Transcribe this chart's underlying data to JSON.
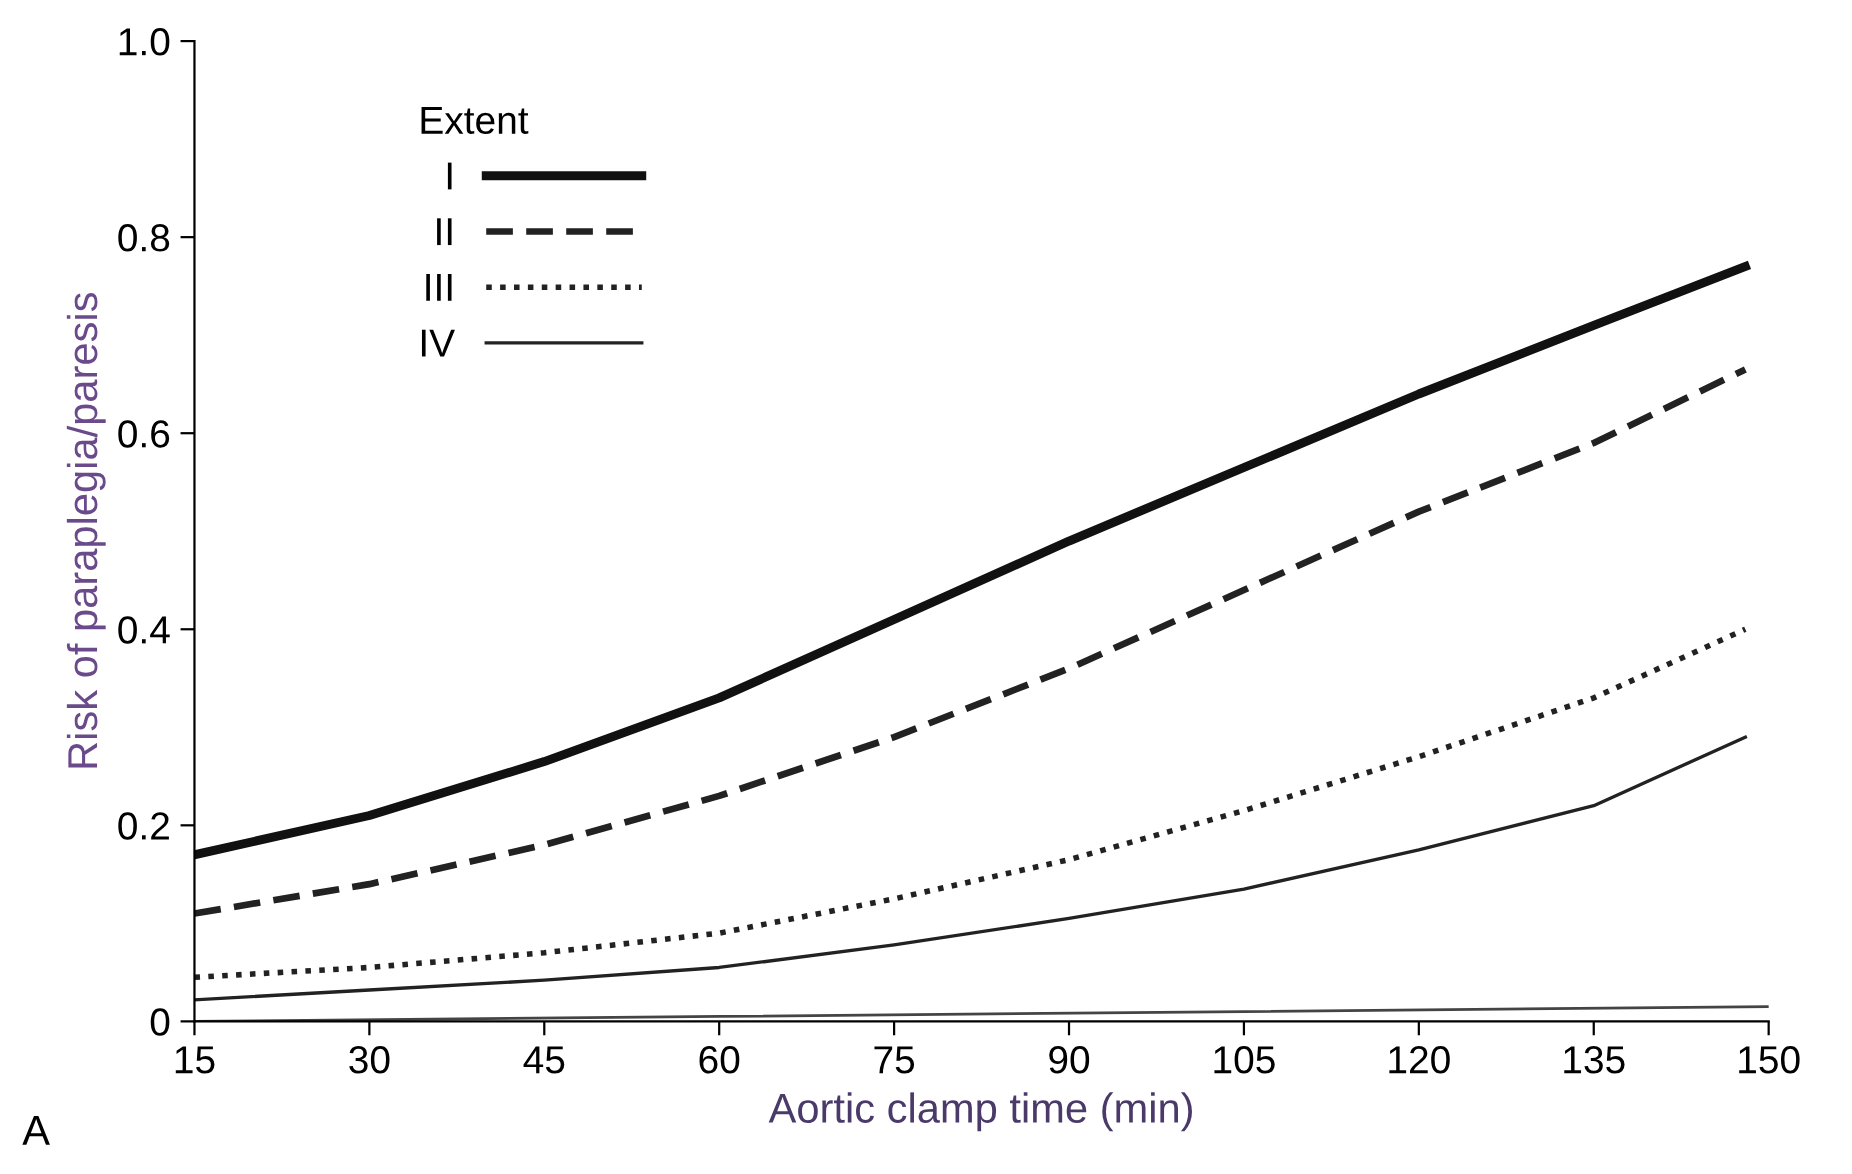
{
  "chart_data": {
    "type": "line",
    "xlabel": "Aortic clamp time (min)",
    "ylabel": "Risk of paraplegia/paresis",
    "legend_title": "Extent",
    "annotations": [
      "A"
    ],
    "x": [
      15,
      30,
      45,
      60,
      75,
      90,
      105,
      120,
      135,
      148
    ],
    "series": [
      {
        "name": "I",
        "color": "#111111",
        "line_style": "solid",
        "values": [
          0.17,
          0.21,
          0.265,
          0.33,
          0.41,
          0.49,
          0.565,
          0.64,
          0.71,
          0.77
        ]
      },
      {
        "name": "II",
        "color": "#222222",
        "line_style": "dashed",
        "values": [
          0.11,
          0.14,
          0.18,
          0.23,
          0.29,
          0.36,
          0.44,
          0.52,
          0.59,
          0.665
        ]
      },
      {
        "name": "III",
        "color": "#222222",
        "line_style": "dotted",
        "values": [
          0.045,
          0.055,
          0.07,
          0.09,
          0.125,
          0.165,
          0.215,
          0.27,
          0.33,
          0.4
        ]
      },
      {
        "name": "IV",
        "color": "#222222",
        "line_style": "solid",
        "values": [
          0.022,
          0.032,
          0.042,
          0.055,
          0.078,
          0.105,
          0.135,
          0.175,
          0.22,
          0.29
        ]
      },
      {
        "color": "#444444",
        "line_style": "solid",
        "x": [
          15,
          60,
          105,
          150
        ],
        "values": [
          0.0,
          0.005,
          0.01,
          0.015
        ]
      }
    ],
    "xlim": [
      15,
      150
    ],
    "ylim": [
      0,
      1
    ],
    "xticks": [
      15,
      30,
      45,
      60,
      75,
      90,
      105,
      120,
      135,
      150
    ],
    "yticks": [
      {
        "value": 0,
        "label": "0"
      },
      0.2,
      0.4,
      0.6,
      0.8,
      {
        "value": 1,
        "label": "1.0"
      }
    ],
    "grid": false,
    "legend": "top left",
    "marker": "none"
  }
}
